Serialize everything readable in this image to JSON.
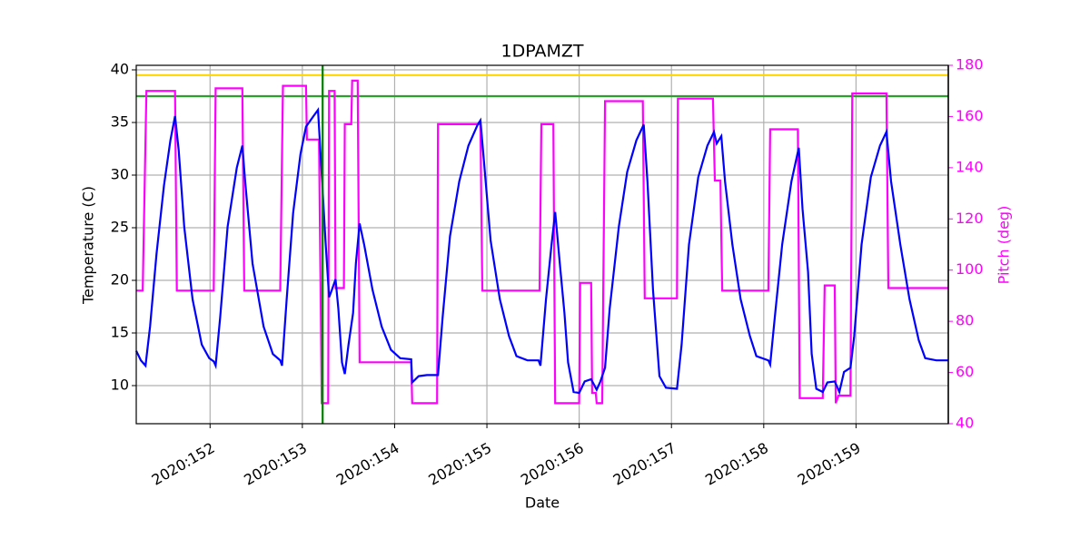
{
  "chart_data": {
    "type": "line",
    "title": "1DPAMZT",
    "xlabel": "Date",
    "ylabel": "Temperature (C)",
    "y2label": "Pitch (deg)",
    "y2color": "#ff00ff",
    "grid": true,
    "xlim": [
      151.2,
      160.0
    ],
    "xticks": [
      {
        "value": 152,
        "label": "2020:152"
      },
      {
        "value": 153,
        "label": "2020:153"
      },
      {
        "value": 154,
        "label": "2020:154"
      },
      {
        "value": 155,
        "label": "2020:155"
      },
      {
        "value": 156,
        "label": "2020:156"
      },
      {
        "value": 157,
        "label": "2020:157"
      },
      {
        "value": 158,
        "label": "2020:158"
      },
      {
        "value": 159,
        "label": "2020:159"
      }
    ],
    "ylim": [
      6.38,
      40.43
    ],
    "yticks": [
      10,
      15,
      20,
      25,
      30,
      35,
      40
    ],
    "y2lim": [
      40,
      180
    ],
    "y2ticks": [
      40,
      60,
      80,
      100,
      120,
      140,
      160,
      180
    ],
    "hlines": [
      {
        "value": 39.5,
        "color": "#ffd700"
      },
      {
        "value": 37.5,
        "color": "#2ca02c"
      }
    ],
    "vlines": [
      {
        "value": 153.22,
        "color": "#008000"
      }
    ],
    "series": [
      {
        "color": "#ff00ff",
        "axis": "y2",
        "x": [
          151.2,
          151.27,
          151.31,
          151.62,
          151.64,
          152.04,
          152.06,
          152.35,
          152.37,
          152.76,
          152.79,
          153.04,
          153.05,
          153.18,
          153.21,
          153.28,
          153.29,
          153.35,
          153.36,
          153.45,
          153.46,
          153.53,
          153.54,
          153.6,
          153.62,
          154.18,
          154.19,
          154.46,
          154.47,
          154.93,
          154.95,
          155.57,
          155.59,
          155.72,
          155.74,
          156.0,
          156.01,
          156.13,
          156.14,
          156.18,
          156.19,
          156.25,
          156.28,
          156.69,
          156.71,
          157.06,
          157.07,
          157.45,
          157.47,
          157.53,
          157.55,
          158.05,
          158.07,
          158.37,
          158.39,
          158.64,
          158.66,
          158.77,
          158.78,
          158.81,
          158.94,
          158.96,
          159.33,
          159.35,
          160.0
        ],
        "values": [
          92,
          92,
          170,
          170,
          92,
          92,
          171,
          171,
          92,
          92,
          172,
          172,
          151,
          151,
          48,
          48,
          170,
          170,
          93,
          93,
          157,
          157,
          174,
          174,
          64,
          64,
          48,
          48,
          157,
          157,
          92,
          92,
          157,
          157,
          48,
          48,
          95,
          95,
          52,
          52,
          48,
          48,
          166,
          166,
          89,
          89,
          167,
          167,
          135,
          135,
          92,
          92,
          155,
          155,
          50,
          50,
          94,
          94,
          48,
          51,
          51,
          169,
          169,
          93,
          93
        ]
      },
      {
        "color": "#0000ff",
        "x": [
          151.2,
          151.25,
          151.3,
          151.35,
          151.42,
          151.5,
          151.57,
          151.62,
          151.66,
          151.72,
          151.81,
          151.91,
          151.99,
          152.04,
          152.06,
          152.11,
          152.19,
          152.29,
          152.35,
          152.38,
          152.46,
          152.58,
          152.68,
          152.76,
          152.78,
          152.83,
          152.9,
          152.98,
          153.04,
          153.12,
          153.17,
          153.2,
          153.25,
          153.29,
          153.32,
          153.36,
          153.39,
          153.43,
          153.46,
          153.5,
          153.55,
          153.58,
          153.62,
          153.67,
          153.76,
          153.86,
          153.96,
          154.06,
          154.18,
          154.19,
          154.26,
          154.35,
          154.47,
          154.52,
          154.6,
          154.7,
          154.8,
          154.9,
          154.93,
          154.97,
          155.04,
          155.14,
          155.24,
          155.32,
          155.44,
          155.56,
          155.58,
          155.64,
          155.7,
          155.74,
          155.79,
          155.84,
          155.88,
          155.94,
          156.0,
          156.06,
          156.13,
          156.19,
          156.23,
          156.28,
          156.33,
          156.43,
          156.52,
          156.62,
          156.7,
          156.74,
          156.8,
          156.87,
          156.94,
          157.06,
          157.11,
          157.19,
          157.29,
          157.39,
          157.46,
          157.49,
          157.54,
          157.58,
          157.66,
          157.75,
          157.85,
          157.92,
          158.05,
          158.07,
          158.12,
          158.2,
          158.3,
          158.38,
          158.42,
          158.48,
          158.52,
          158.57,
          158.64,
          158.69,
          158.77,
          158.82,
          158.87,
          158.94,
          158.98,
          159.06,
          159.16,
          159.26,
          159.33,
          159.38,
          159.48,
          159.58,
          159.68,
          159.75,
          159.87,
          160.0
        ],
        "values": [
          13.3,
          12.4,
          11.9,
          15.6,
          22.5,
          29.0,
          33.3,
          35.6,
          32.4,
          25.1,
          18.2,
          13.9,
          12.6,
          12.3,
          11.9,
          16.5,
          25.1,
          30.7,
          32.8,
          29.4,
          21.6,
          15.6,
          13.0,
          12.4,
          11.9,
          18.2,
          26.4,
          32.0,
          34.6,
          35.6,
          36.2,
          31.6,
          23.8,
          18.4,
          19.1,
          20.1,
          17.3,
          12.2,
          11.1,
          13.9,
          16.9,
          21.6,
          25.4,
          23.4,
          19.1,
          15.6,
          13.4,
          12.6,
          12.5,
          10.3,
          10.9,
          11.0,
          11.0,
          16.5,
          24.2,
          29.4,
          32.8,
          34.8,
          35.2,
          31.1,
          23.8,
          18.2,
          14.7,
          12.8,
          12.4,
          12.4,
          11.9,
          18.2,
          23.4,
          26.5,
          21.6,
          16.9,
          12.2,
          9.4,
          9.3,
          10.4,
          10.6,
          9.6,
          10.4,
          11.7,
          17.3,
          25.1,
          30.3,
          33.3,
          34.8,
          29.4,
          19.1,
          10.9,
          9.8,
          9.7,
          13.9,
          23.4,
          29.8,
          32.8,
          34.1,
          33.0,
          33.7,
          29.4,
          23.4,
          18.2,
          14.7,
          12.8,
          12.4,
          12.0,
          16.5,
          23.4,
          29.4,
          32.6,
          26.8,
          20.8,
          13.0,
          9.7,
          9.4,
          10.3,
          10.4,
          9.4,
          11.3,
          11.7,
          14.7,
          23.4,
          29.8,
          32.8,
          34.1,
          29.4,
          23.4,
          18.2,
          14.3,
          12.6,
          12.4,
          12.4
        ]
      }
    ]
  }
}
